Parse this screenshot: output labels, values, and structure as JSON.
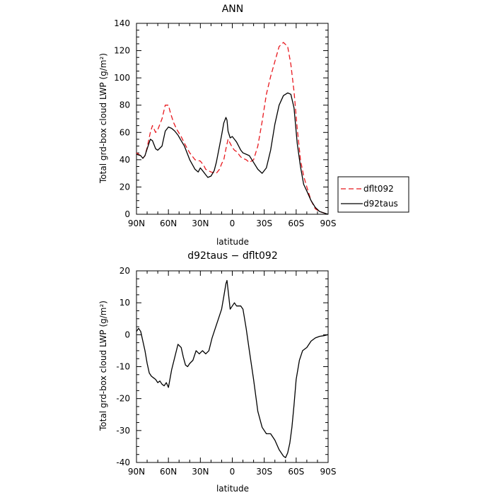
{
  "chart_data": [
    {
      "type": "line",
      "title": "ANN",
      "xlabel": "latitude",
      "ylabel": "Total grd-box cloud LWP (g/m²)",
      "xlim": [
        90,
        -90
      ],
      "ylim": [
        0,
        140
      ],
      "yticks": [
        0,
        20,
        40,
        60,
        80,
        100,
        120,
        140
      ],
      "xticks": [
        90,
        60,
        30,
        0,
        -30,
        -60,
        -90
      ],
      "xtick_labels": [
        "90N",
        "60N",
        "30N",
        "0",
        "30S",
        "60S",
        "90S"
      ],
      "legend_position": "right",
      "grid": false,
      "series": [
        {
          "name": "dflt092",
          "color": "#e8191f",
          "dash": "dashed",
          "x": [
            90,
            86,
            84,
            82,
            80,
            77,
            75,
            72,
            70,
            66,
            63,
            60,
            58,
            55,
            52,
            48,
            45,
            40,
            35,
            30,
            27,
            25,
            20,
            15,
            12,
            10,
            8,
            6,
            4,
            2,
            0,
            -2,
            -4,
            -6,
            -8,
            -10,
            -13,
            -16,
            -20,
            -24,
            -28,
            -32,
            -36,
            -40,
            -44,
            -48,
            -52,
            -55,
            -58,
            -61,
            -64,
            -67,
            -70,
            -74,
            -78,
            -82,
            -86,
            -90
          ],
          "y": [
            45,
            43,
            41,
            43,
            49,
            60,
            65,
            60,
            62,
            70,
            80,
            80,
            74,
            67,
            62,
            57,
            52,
            45,
            40,
            39,
            36,
            33,
            31,
            30,
            33,
            37,
            40,
            48,
            55,
            52,
            49,
            47,
            46,
            44,
            42,
            41,
            40,
            38,
            40,
            50,
            68,
            88,
            101,
            112,
            123,
            126,
            123,
            110,
            90,
            63,
            40,
            28,
            20,
            10,
            4,
            2,
            1,
            0
          ]
        },
        {
          "name": "d92taus",
          "color": "#000000",
          "dash": "solid",
          "x": [
            90,
            86,
            84,
            82,
            80,
            77,
            75,
            72,
            70,
            66,
            63,
            60,
            57,
            54,
            51,
            48,
            45,
            40,
            35,
            32,
            30,
            27,
            25,
            23,
            20,
            17,
            15,
            12,
            10,
            8,
            6,
            5,
            4,
            2,
            0,
            -2,
            -4,
            -6,
            -8,
            -10,
            -13,
            -16,
            -20,
            -24,
            -28,
            -32,
            -36,
            -40,
            -44,
            -48,
            -52,
            -55,
            -58,
            -61,
            -64,
            -67,
            -70,
            -74,
            -78,
            -82,
            -86,
            -90
          ],
          "y": [
            44,
            43,
            41,
            43,
            48,
            55,
            54,
            48,
            47,
            50,
            61,
            64,
            63,
            61,
            58,
            54,
            50,
            40,
            33,
            31,
            34,
            31,
            29,
            27,
            28,
            32,
            38,
            50,
            58,
            67,
            71,
            69,
            61,
            56,
            57,
            55,
            53,
            50,
            47,
            45,
            44,
            43,
            38,
            33,
            30,
            34,
            47,
            66,
            80,
            87,
            89,
            88,
            78,
            52,
            35,
            22,
            17,
            10,
            5,
            2,
            1,
            0
          ]
        }
      ]
    },
    {
      "type": "line",
      "title": "d92taus − dflt092",
      "xlabel": "latitude",
      "ylabel": "Total grd-box cloud LWP (g/m²)",
      "xlim": [
        90,
        -90
      ],
      "ylim": [
        -40,
        20
      ],
      "yticks": [
        -40,
        -30,
        -20,
        -10,
        0,
        10,
        20
      ],
      "xticks": [
        90,
        60,
        30,
        0,
        -30,
        -60,
        -90
      ],
      "xtick_labels": [
        "90N",
        "60N",
        "30N",
        "0",
        "30S",
        "60S",
        "90S"
      ],
      "grid": false,
      "series": [
        {
          "name": "",
          "color": "#000000",
          "dash": "solid",
          "x": [
            90,
            88,
            86,
            84,
            82,
            80,
            78,
            76,
            74,
            72,
            70,
            68,
            66,
            64,
            62,
            60,
            57,
            54,
            51,
            48,
            46,
            44,
            42,
            40,
            37,
            34,
            31,
            28,
            25,
            22,
            19,
            16,
            13,
            10,
            8,
            6,
            5,
            4,
            2,
            0,
            -2,
            -4,
            -6,
            -8,
            -10,
            -13,
            -16,
            -20,
            -24,
            -28,
            -32,
            -36,
            -40,
            -44,
            -46,
            -48,
            -50,
            -52,
            -54,
            -56,
            -58,
            -60,
            -63,
            -66,
            -70,
            -74,
            -78,
            -82,
            -86,
            -90
          ],
          "y": [
            1,
            2,
            1,
            -2,
            -5,
            -9,
            -12,
            -13,
            -13.5,
            -14,
            -15,
            -14.5,
            -15.5,
            -16,
            -15,
            -16.5,
            -11,
            -7,
            -3,
            -4,
            -7,
            -9.5,
            -10,
            -9,
            -8,
            -5,
            -6,
            -5,
            -6,
            -5,
            -1,
            2,
            5,
            8,
            12,
            16,
            17,
            14,
            8,
            9,
            10,
            9,
            9,
            9,
            8,
            2,
            -5,
            -14,
            -24,
            -29,
            -31,
            -31,
            -33,
            -36,
            -37,
            -38,
            -38.5,
            -37,
            -34,
            -29,
            -22,
            -14,
            -8,
            -5,
            -4,
            -2,
            -1,
            -0.5,
            -0.3,
            0
          ]
        }
      ]
    }
  ]
}
